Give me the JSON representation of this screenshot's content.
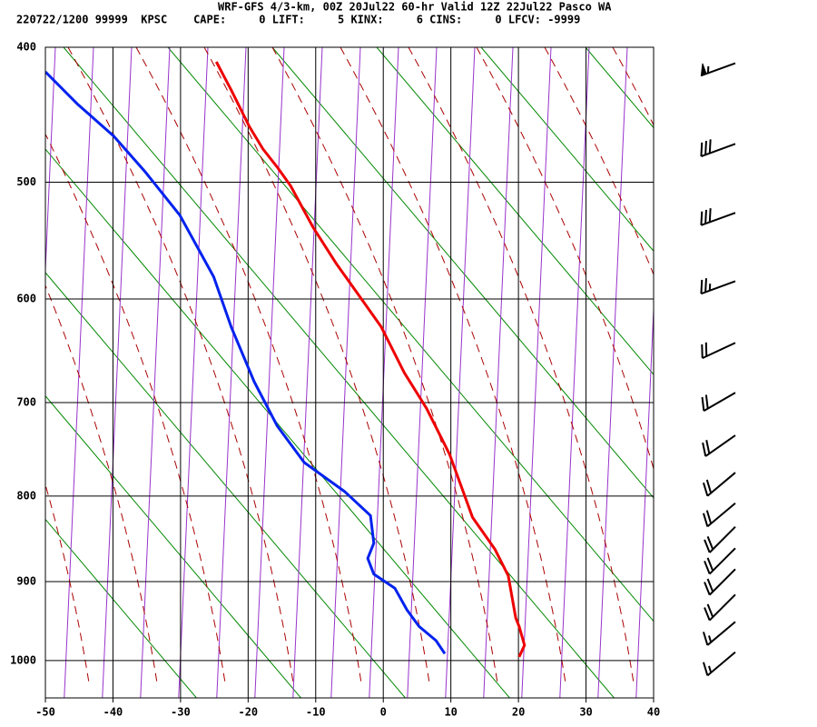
{
  "chart_data": {
    "type": "skewt",
    "title": "WRF-GFS 4/3-km, 00Z 20Jul22 60-hr Valid 12Z 22Jul22 Pasco WA",
    "subtitle": "220722/1200 99999  KPSC    CAPE:     0 LIFT:     5 KINX:     6 CINS:     0 LFCV: -9999",
    "xlim": [
      -50,
      40
    ],
    "xticks": [
      -50,
      -40,
      -30,
      -20,
      -10,
      0,
      10,
      20,
      30,
      40
    ],
    "ylim": [
      400,
      1050
    ],
    "yticks": [
      400,
      500,
      600,
      700,
      800,
      900,
      1000
    ],
    "y_scale_exponent": 0.286,
    "grid": true,
    "series": [
      {
        "color": "#ee0000",
        "x": [
          -24.7,
          -22.5,
          -19.8,
          -17.8,
          -15.7,
          -13.7,
          -10.4,
          -7.0,
          -3.7,
          -0.3,
          3.1,
          6.4,
          9.8,
          13.2,
          16.5,
          18.5,
          19.6,
          20.1,
          20.9,
          20.1
        ],
        "y": [
          410,
          430,
          457,
          474,
          488,
          503,
          537,
          568,
          596,
          626,
          670,
          706,
          754,
          824,
          861,
          893,
          945,
          956,
          980,
          995
        ]
      },
      {
        "color": "#0022ee",
        "x": [
          -50,
          -45.3,
          -39.9,
          -35.2,
          -30.1,
          -25.1,
          -22.5,
          -19.1,
          -15.7,
          -11.7,
          -5.7,
          -1.9,
          -1.4,
          -2.3,
          -1.4,
          1.7,
          3.5,
          5.3,
          7.8,
          9.1
        ],
        "y": [
          417,
          440,
          464,
          492,
          527,
          580,
          626,
          679,
          724,
          763,
          795,
          822,
          854,
          872,
          891,
          908,
          935,
          956,
          974,
          991
        ]
      }
    ],
    "wind": {
      "pressure": [
        411,
        470,
        525,
        584,
        641,
        690,
        734,
        774,
        808,
        835,
        860,
        885,
        916,
        950,
        989
      ],
      "speed": [
        55,
        30,
        30,
        25,
        20,
        20,
        20,
        20,
        20,
        20,
        20,
        20,
        20,
        15,
        15
      ],
      "direction": [
        250,
        250,
        250,
        250,
        245,
        240,
        235,
        230,
        230,
        225,
        225,
        225,
        225,
        230,
        230
      ]
    }
  }
}
